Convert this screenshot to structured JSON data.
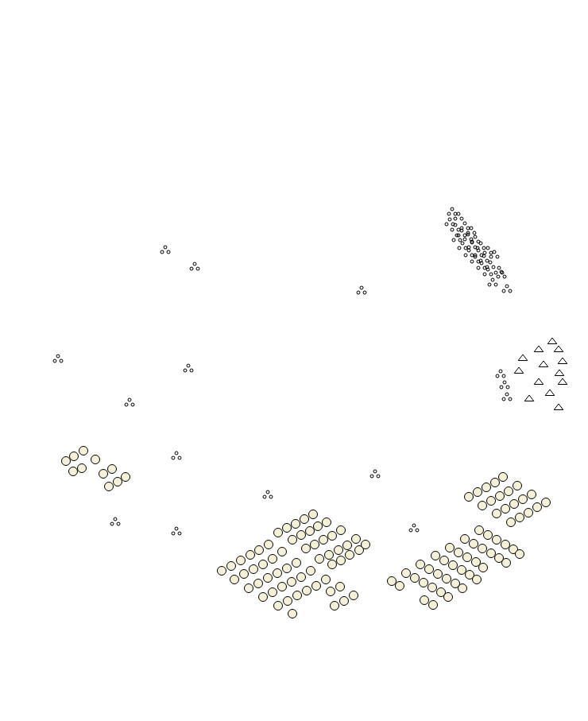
{
  "chart_data": {
    "type": "scatter",
    "xlim": [
      0,
      740
    ],
    "ylim": [
      907,
      0
    ],
    "xticks": [],
    "yticks": [],
    "tick_labels": false,
    "grid": false,
    "series": [
      {
        "marker": "dots",
        "color": "#000000",
        "x": [
          208,
          245,
          455,
          73,
          237,
          163,
          222,
          472,
          337,
          145,
          222,
          521,
          630,
          635,
          638,
          569,
          577,
          566,
          573,
          585,
          581,
          593,
          575,
          589,
          598,
          582,
          594,
          605,
          590,
          602,
          614,
          598,
          609,
          622,
          606,
          617,
          628,
          614,
          631,
          620,
          638
        ],
        "y": [
          314,
          335,
          365,
          451,
          463,
          506,
          573,
          596,
          622,
          656,
          668,
          664,
          470,
          484,
          499,
          266,
          272,
          279,
          286,
          284,
          293,
          290,
          299,
          298,
          301,
          309,
          308,
          309,
          318,
          318,
          315,
          326,
          325,
          320,
          334,
          333,
          340,
          342,
          345,
          355,
          363
        ]
      },
      {
        "marker": "mound",
        "color": "#ffffff",
        "x": [
          695,
          678,
          703,
          658,
          708,
          684,
          653,
          704,
          678,
          708,
          692,
          666,
          703
        ],
        "y": [
          430,
          440,
          440,
          451,
          455,
          459,
          467,
          470,
          481,
          481,
          495,
          502,
          513
        ]
      },
      {
        "marker": "cabbage",
        "color": "#f4f1d8",
        "x": [
          83,
          93,
          105,
          120,
          92,
          103,
          130,
          141,
          158,
          137,
          148,
          279,
          291,
          303,
          315,
          326,
          338,
          350,
          361,
          372,
          383,
          394,
          295,
          307,
          319,
          331,
          343,
          355,
          368,
          379,
          390,
          400,
          411,
          313,
          325,
          337,
          349,
          361,
          373,
          385,
          396,
          407,
          418,
          429,
          331,
          343,
          355,
          367,
          379,
          391,
          402,
          414,
          426,
          437,
          448,
          350,
          362,
          374,
          386,
          398,
          410,
          418,
          429,
          440,
          452,
          460,
          368,
          421,
          433,
          445,
          416,
          428,
          590,
          601,
          612,
          623,
          633,
          607,
          618,
          629,
          640,
          651,
          625,
          636,
          647,
          658,
          669,
          643,
          654,
          665,
          676,
          687,
          493,
          503,
          511,
          522,
          533,
          544,
          555,
          564,
          529,
          540,
          551,
          562,
          573,
          582,
          548,
          559,
          570,
          581,
          591,
          600,
          566,
          577,
          588,
          599,
          608,
          585,
          596,
          607,
          618,
          628,
          637,
          603,
          614,
          625,
          636,
          646,
          654,
          534,
          545
        ],
        "y": [
          580,
          574,
          567,
          578,
          593,
          589,
          596,
          590,
          600,
          612,
          606,
          718,
          712,
          705,
          698,
          692,
          685,
          670,
          664,
          659,
          653,
          647,
          729,
          722,
          716,
          710,
          703,
          694,
          679,
          673,
          668,
          662,
          657,
          740,
          734,
          727,
          721,
          715,
          708,
          690,
          685,
          679,
          674,
          667,
          751,
          745,
          738,
          732,
          726,
          718,
          703,
          698,
          692,
          686,
          678,
          762,
          756,
          749,
          743,
          737,
          729,
          710,
          705,
          698,
          692,
          685,
          772,
          762,
          756,
          749,
          744,
          738,
          625,
          619,
          613,
          607,
          600,
          636,
          630,
          624,
          618,
          611,
          646,
          640,
          634,
          628,
          622,
          657,
          651,
          645,
          638,
          632,
          731,
          737,
          721,
          727,
          733,
          739,
          745,
          751,
          710,
          716,
          722,
          728,
          734,
          740,
          699,
          705,
          711,
          717,
          723,
          729,
          689,
          695,
          701,
          707,
          714,
          678,
          684,
          690,
          696,
          702,
          708,
          667,
          673,
          679,
          685,
          691,
          697,
          755,
          761
        ]
      }
    ]
  }
}
